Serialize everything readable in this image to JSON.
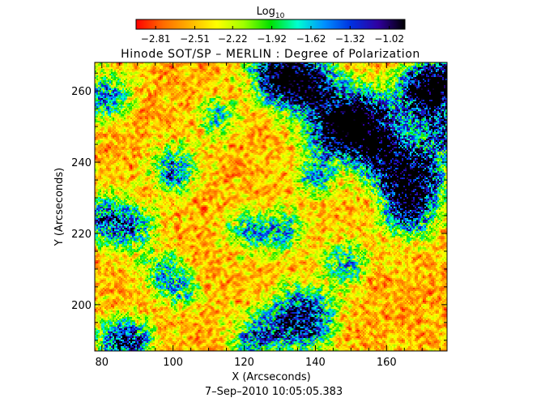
{
  "chart_data": {
    "type": "heatmap",
    "title": "Hinode SOT/SP – MERLIN : Degree of Polarization",
    "colorbar": {
      "label_main": "Log",
      "label_sub": "10",
      "ticks": [
        -2.81,
        -2.51,
        -2.22,
        -1.92,
        -1.62,
        -1.32,
        -1.02
      ],
      "tick_labels": [
        "−2.81",
        "−2.51",
        "−2.22",
        "−1.92",
        "−1.62",
        "−1.32",
        "−1.02"
      ],
      "range": [
        -2.96,
        -0.9
      ],
      "colors": [
        "#ff0000",
        "#ff6a00",
        "#ffb400",
        "#ffff00",
        "#a0ff00",
        "#00e000",
        "#00ffd0",
        "#0090ff",
        "#0030e0",
        "#3000a0",
        "#000000"
      ]
    },
    "xlabel": "X (Arcseconds)",
    "ylabel": "Y (Arcseconds)",
    "xlim": [
      78,
      177
    ],
    "ylim": [
      187,
      268
    ],
    "xticks": [
      80,
      100,
      120,
      140,
      160
    ],
    "yticks": [
      200,
      220,
      240,
      260
    ],
    "footer": "7–Sep–2010 10:05:05.383",
    "features": [
      {
        "x": 146,
        "y": 250,
        "intensity": 0.95
      },
      {
        "x": 167,
        "y": 236,
        "intensity": 0.95
      },
      {
        "x": 136,
        "y": 196,
        "intensity": 0.9
      },
      {
        "x": 158,
        "y": 244,
        "intensity": 0.8
      },
      {
        "x": 170,
        "y": 259,
        "intensity": 0.78
      },
      {
        "x": 153,
        "y": 253,
        "intensity": 0.75
      },
      {
        "x": 139,
        "y": 262,
        "intensity": 0.75
      },
      {
        "x": 132,
        "y": 262,
        "intensity": 0.65
      },
      {
        "x": 175,
        "y": 263,
        "intensity": 0.75
      },
      {
        "x": 166,
        "y": 226,
        "intensity": 0.65
      },
      {
        "x": 127,
        "y": 266,
        "intensity": 0.6
      },
      {
        "x": 81,
        "y": 259,
        "intensity": 0.55
      },
      {
        "x": 81,
        "y": 224,
        "intensity": 0.6
      },
      {
        "x": 100,
        "y": 238,
        "intensity": 0.55
      },
      {
        "x": 84,
        "y": 190,
        "intensity": 0.55
      },
      {
        "x": 123,
        "y": 191,
        "intensity": 0.55
      },
      {
        "x": 148,
        "y": 212,
        "intensity": 0.5
      },
      {
        "x": 121,
        "y": 221,
        "intensity": 0.45
      },
      {
        "x": 89,
        "y": 222,
        "intensity": 0.45
      },
      {
        "x": 176,
        "y": 248,
        "intensity": 0.55
      },
      {
        "x": 112,
        "y": 253,
        "intensity": 0.4
      },
      {
        "x": 140,
        "y": 236,
        "intensity": 0.45
      },
      {
        "x": 131,
        "y": 221,
        "intensity": 0.45
      },
      {
        "x": 96,
        "y": 210,
        "intensity": 0.4
      },
      {
        "x": 102,
        "y": 205,
        "intensity": 0.4
      },
      {
        "x": 90,
        "y": 190,
        "intensity": 0.4
      }
    ]
  }
}
